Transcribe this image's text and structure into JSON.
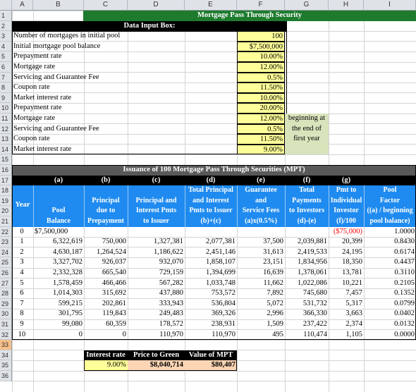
{
  "column_headers": [
    "A",
    "B",
    "C",
    "D",
    "E",
    "F",
    "G",
    "H",
    "I"
  ],
  "row_numbers": [
    "1",
    "2",
    "3",
    "4",
    "5",
    "6",
    "7",
    "8",
    "9",
    "10",
    "11",
    "12",
    "13",
    "14",
    "15",
    "16",
    "17",
    "18",
    "19",
    "20",
    "21",
    "22",
    "23",
    "24",
    "25",
    "26",
    "27",
    "28",
    "29",
    "30",
    "31",
    "32",
    "33",
    "34",
    "35",
    "36"
  ],
  "title": "Mortgage Pass Through Security",
  "input_box": {
    "header": "Data Input Box:",
    "rows": [
      {
        "label": "Number of mortgages in initial pool",
        "value": "100"
      },
      {
        "label": "Initial mortgage pool balance",
        "value": "$7,500,000"
      },
      {
        "label": "Prepayment rate",
        "value": "10.00%"
      },
      {
        "label": "Mortgage rate",
        "value": "12.00%"
      },
      {
        "label": "Servicing and Guarantee Fee",
        "value": "0.5%"
      },
      {
        "label": "Coupon rate",
        "value": "11.50%"
      },
      {
        "label": "Market interest rate",
        "value": "10.00%"
      },
      {
        "label": "Prepayment rate",
        "value": "20.00%"
      },
      {
        "label": "Mortgage rate",
        "value": "12.00%"
      },
      {
        "label": "Servicing and Guarantee Fee",
        "value": "0.5%"
      },
      {
        "label": "Coupon rate",
        "value": "11.50%"
      },
      {
        "label": "Market interest rate",
        "value": "9.00%"
      }
    ],
    "note": [
      "beginning at",
      "the end of",
      "first year"
    ]
  },
  "issuance_title": "Issuance of 100 Mortgage Pass Through Securities (MPT)",
  "letters": [
    "(a)",
    "(b)",
    "(c)",
    "(d)",
    "(e)",
    "(f)",
    "(g)"
  ],
  "headers": {
    "year": "Year",
    "a": [
      "Pool",
      "Balance"
    ],
    "b": [
      "Principal",
      "due to",
      "Prepayment"
    ],
    "c": [
      "Principal and",
      "Interest Pmts",
      "to Issuer"
    ],
    "d": [
      "Total Principal",
      "and Interest",
      "Pmts to Issuer",
      "(b)+(c)"
    ],
    "e": [
      "Guarantee",
      "and",
      "Service Fees",
      "(a)x(0.5%)"
    ],
    "f": [
      "Total",
      "Payments",
      "to Investors",
      "(d)-(e)"
    ],
    "g": [
      "Pmt to",
      "Individual",
      "Investor",
      "(f)/100"
    ],
    "h": [
      "Pool",
      "Factor",
      "((a) / beginning",
      "pool balance)"
    ]
  },
  "table_rows": [
    {
      "year": "0",
      "a": "$7,500,000",
      "b": "",
      "c": "",
      "d": "",
      "e": "",
      "f": "",
      "g": "($75,000)",
      "h": "1.0000"
    },
    {
      "year": "1",
      "a": "6,322,619",
      "b": "750,000",
      "c": "1,327,381",
      "d": "2,077,381",
      "e": "37,500",
      "f": "2,039,881",
      "g": "20,399",
      "h": "0.8430"
    },
    {
      "year": "2",
      "a": "4,630,187",
      "b": "1,264,524",
      "c": "1,186,622",
      "d": "2,451,146",
      "e": "31,613",
      "f": "2,419,533",
      "g": "24,195",
      "h": "0.6174"
    },
    {
      "year": "3",
      "a": "3,327,702",
      "b": "926,037",
      "c": "932,070",
      "d": "1,858,107",
      "e": "23,151",
      "f": "1,834,956",
      "g": "18,350",
      "h": "0.4437"
    },
    {
      "year": "4",
      "a": "2,332,328",
      "b": "665,540",
      "c": "729,159",
      "d": "1,394,699",
      "e": "16,639",
      "f": "1,378,061",
      "g": "13,781",
      "h": "0.3110"
    },
    {
      "year": "5",
      "a": "1,578,459",
      "b": "466,466",
      "c": "567,282",
      "d": "1,033,748",
      "e": "11,662",
      "f": "1,022,086",
      "g": "10,221",
      "h": "0.2105"
    },
    {
      "year": "6",
      "a": "1,014,303",
      "b": "315,692",
      "c": "437,880",
      "d": "753,572",
      "e": "7,892",
      "f": "745,680",
      "g": "7,457",
      "h": "0.1352"
    },
    {
      "year": "7",
      "a": "599,215",
      "b": "202,861",
      "c": "333,943",
      "d": "536,804",
      "e": "5,072",
      "f": "531,732",
      "g": "5,317",
      "h": "0.0799"
    },
    {
      "year": "8",
      "a": "301,795",
      "b": "119,843",
      "c": "249,483",
      "d": "369,326",
      "e": "2,996",
      "f": "366,330",
      "g": "3,663",
      "h": "0.0402"
    },
    {
      "year": "9",
      "a": "99,080",
      "b": "60,359",
      "c": "178,572",
      "d": "238,931",
      "e": "1,509",
      "f": "237,422",
      "g": "2,374",
      "h": "0.0132"
    },
    {
      "year": "10",
      "a": "0",
      "b": "0",
      "c": "110,970",
      "d": "110,970",
      "e": "495",
      "f": "110,474",
      "g": "1,105",
      "h": "0.0000"
    }
  ],
  "summary": {
    "labels": [
      "Interest rate",
      "Price to Green",
      "Value of MPT"
    ],
    "values": [
      "9.00%",
      "$8,040,714",
      "$80,407"
    ]
  },
  "colors": {
    "title_green": "#1e7b2e",
    "header_blue": "#1f8bf0",
    "input_yellow": "#ffff99",
    "note_green": "#d8e4bc",
    "issuance_grey": "#595959",
    "negative_red": "#ff0000",
    "value_peach": "#fcd5b4"
  }
}
